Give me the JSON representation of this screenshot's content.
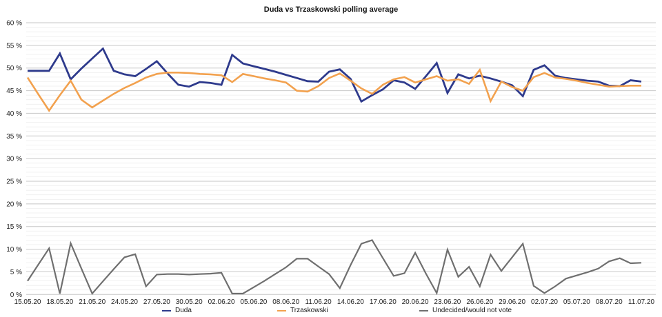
{
  "page": {
    "title": "Duda vs Trzaskowski polling average"
  },
  "legend": {
    "items": [
      {
        "label": "Duda",
        "color": "#2e3a8c",
        "x": 235
      },
      {
        "label": "Trzaskowski",
        "color": "#f2a14e",
        "x": 402
      },
      {
        "label": "Undecided/would not vote",
        "color": "#6f6f6f",
        "x": 608
      }
    ]
  },
  "chart_data": {
    "type": "line",
    "title": "Duda vs Trzaskowski polling average",
    "xlabel": "",
    "ylabel": "",
    "ylim": [
      0,
      60
    ],
    "y_major_step": 5,
    "y_minor_step": 1,
    "y_tick_suffix": " %",
    "grid": "horizontal, minor every 1%, major every 5%",
    "legend_position": "bottom",
    "x_tick_labels": [
      "15.05.20",
      "18.05.20",
      "21.05.20",
      "24.05.20",
      "27.05.20",
      "30.05.20",
      "02.06.20",
      "05.06.20",
      "08.06.20",
      "11.06.20",
      "14.06.20",
      "17.06.20",
      "20.06.20",
      "23.06.20",
      "26.06.20",
      "29.06.20",
      "02.07.20",
      "05.07.20",
      "08.07.20",
      "11.07.20"
    ],
    "points_per_tick_interval": 3,
    "series": [
      {
        "name": "Duda",
        "color": "#2e3a8c",
        "stroke_width": 2.8,
        "values": [
          49.4,
          49.4,
          49.4,
          53.2,
          47.5,
          49.9,
          52.1,
          54.3,
          49.4,
          48.6,
          48.2,
          49.8,
          51.5,
          48.8,
          46.3,
          45.9,
          46.9,
          46.7,
          46.3,
          52.9,
          51.0,
          50.4,
          49.8,
          49.2,
          48.5,
          47.8,
          47.1,
          47.0,
          49.2,
          49.7,
          47.6,
          42.6,
          44.0,
          45.3,
          47.3,
          46.8,
          45.4,
          48.2,
          51.1,
          44.5,
          48.6,
          47.7,
          48.3,
          47.7,
          47.0,
          46.2,
          43.8,
          49.6,
          50.6,
          48.3,
          47.8,
          47.5,
          47.2,
          47.0,
          46.1,
          46.0,
          47.3,
          47.0
        ]
      },
      {
        "name": "Trzaskowski",
        "color": "#f2a14e",
        "stroke_width": 2.6,
        "values": [
          47.9,
          44.2,
          40.6,
          44.0,
          47.2,
          43.0,
          41.3,
          42.8,
          44.3,
          45.6,
          46.7,
          47.9,
          48.7,
          49.0,
          49.0,
          48.9,
          48.7,
          48.6,
          48.4,
          46.9,
          48.7,
          48.2,
          47.7,
          47.3,
          46.8,
          45.0,
          44.8,
          46.0,
          47.8,
          48.8,
          47.2,
          45.5,
          44.3,
          46.3,
          47.5,
          48.0,
          46.8,
          47.5,
          48.2,
          47.2,
          47.5,
          46.5,
          49.6,
          42.7,
          47.0,
          45.8,
          45.0,
          48.0,
          48.9,
          47.9,
          47.6,
          47.2,
          46.7,
          46.3,
          45.9,
          46.0,
          46.1,
          46.1
        ]
      },
      {
        "name": "Undecided/would not vote",
        "color": "#6f6f6f",
        "stroke_width": 2.2,
        "values": [
          3.0,
          6.6,
          10.2,
          0.2,
          11.3,
          5.7,
          0.2,
          2.9,
          5.6,
          8.2,
          8.9,
          1.8,
          4.4,
          4.5,
          4.5,
          4.4,
          4.5,
          4.6,
          4.8,
          0.2,
          0.2,
          1.6,
          3.0,
          4.5,
          6.0,
          7.9,
          7.9,
          6.2,
          4.5,
          1.4,
          6.5,
          11.2,
          12.0,
          8.0,
          4.1,
          4.7,
          9.2,
          4.6,
          0.3,
          9.9,
          3.9,
          6.1,
          1.8,
          8.8,
          5.2,
          8.2,
          11.2,
          1.9,
          0.3,
          1.8,
          3.5,
          4.2,
          4.9,
          5.7,
          7.3,
          8.0,
          6.9,
          7.0
        ]
      }
    ]
  }
}
